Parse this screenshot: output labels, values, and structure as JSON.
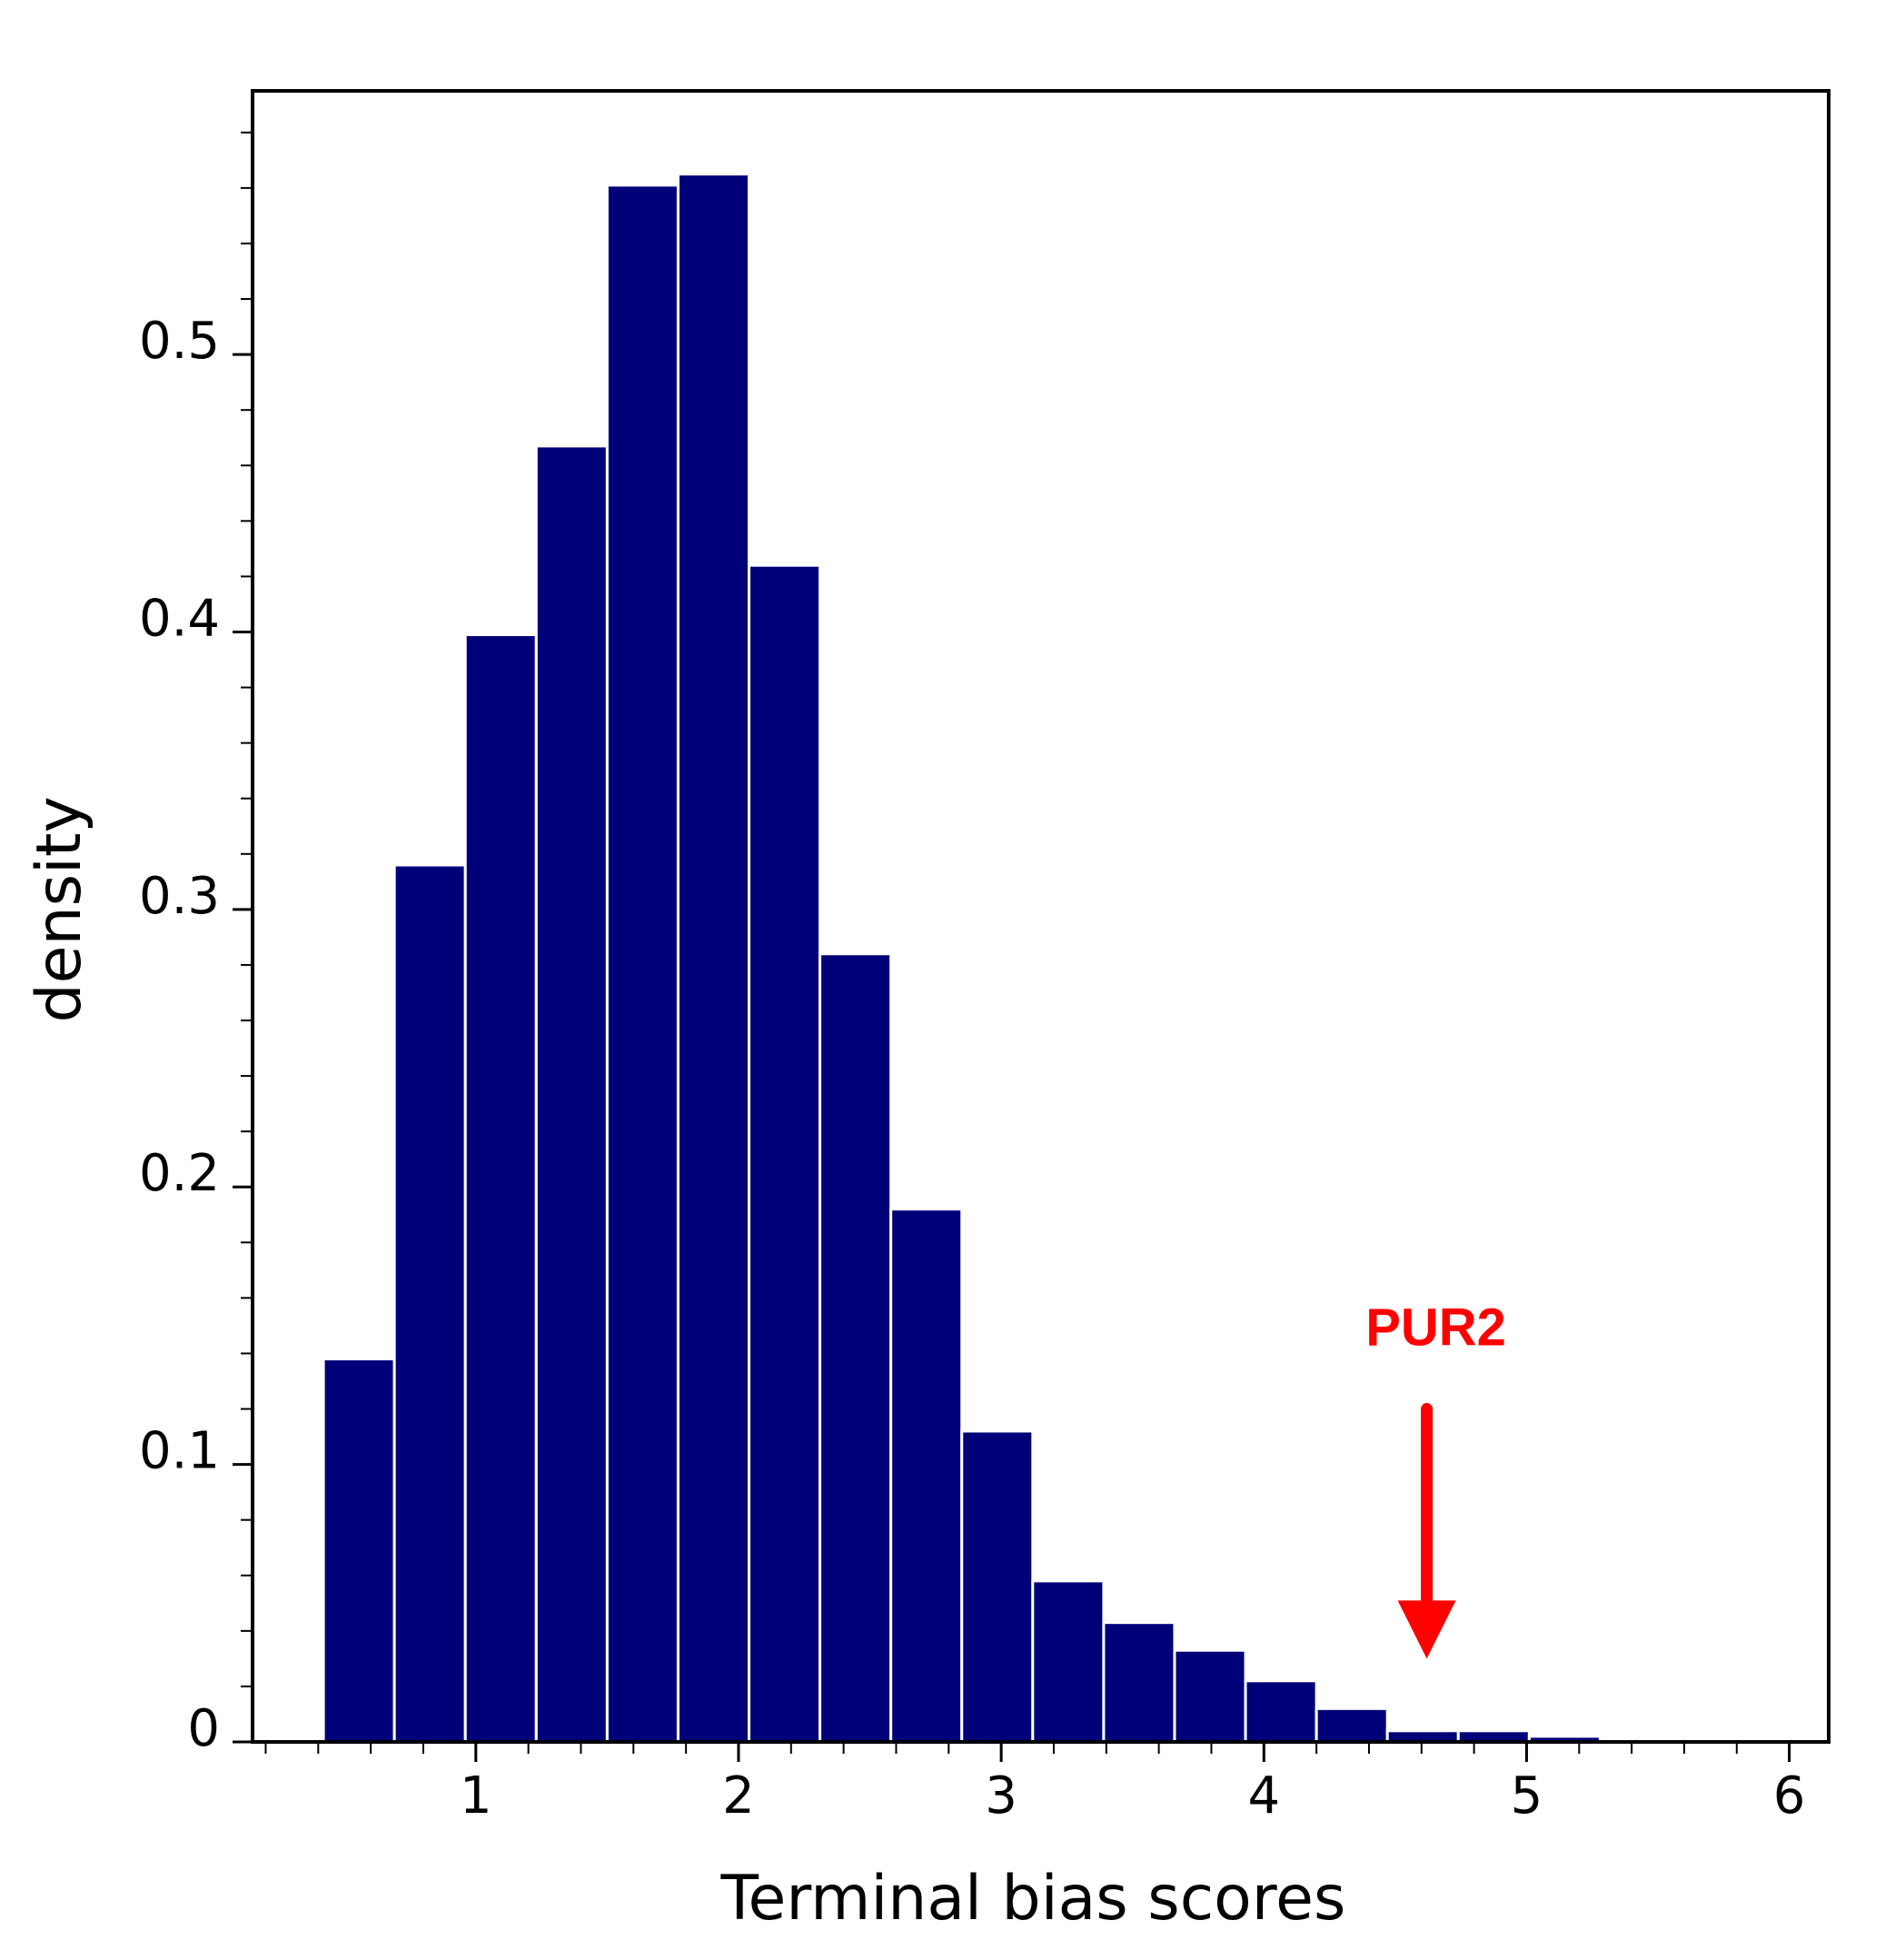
{
  "chart_data": {
    "type": "bar",
    "title": "",
    "xlabel": "Terminal bias scores",
    "ylabel": "density",
    "xlim": [
      0.15,
      6.15
    ],
    "ylim": [
      0,
      0.595
    ],
    "grid": false,
    "legend": "none",
    "colors": {
      "bar": "#000078",
      "bar_edge": "#ffffff",
      "annotation": "#ff0000",
      "axis": "#000000"
    },
    "x_ticks": [
      {
        "value": 1,
        "label": "1"
      },
      {
        "value": 2,
        "label": "2"
      },
      {
        "value": 3,
        "label": "3"
      },
      {
        "value": 4,
        "label": "4"
      },
      {
        "value": 5,
        "label": "5"
      },
      {
        "value": 6,
        "label": "6"
      }
    ],
    "y_ticks": [
      {
        "value": 0,
        "label": "0"
      },
      {
        "value": 0.1,
        "label": "0.1"
      },
      {
        "value": 0.2,
        "label": "0.2"
      },
      {
        "value": 0.3,
        "label": "0.3"
      },
      {
        "value": 0.4,
        "label": "0.4"
      },
      {
        "value": 0.5,
        "label": "0.5"
      }
    ],
    "x_minor_step": 0.2,
    "y_minor_step": 0.02,
    "bins": [
      {
        "x0": 0.42,
        "x1": 0.69,
        "density": 0.138
      },
      {
        "x0": 0.69,
        "x1": 0.96,
        "density": 0.316
      },
      {
        "x0": 0.96,
        "x1": 1.23,
        "density": 0.399
      },
      {
        "x0": 1.23,
        "x1": 1.5,
        "density": 0.467
      },
      {
        "x0": 1.5,
        "x1": 1.77,
        "density": 0.561
      },
      {
        "x0": 1.77,
        "x1": 2.04,
        "density": 0.565
      },
      {
        "x0": 2.04,
        "x1": 2.31,
        "density": 0.424
      },
      {
        "x0": 2.31,
        "x1": 2.58,
        "density": 0.284
      },
      {
        "x0": 2.58,
        "x1": 2.85,
        "density": 0.192
      },
      {
        "x0": 2.85,
        "x1": 3.12,
        "density": 0.112
      },
      {
        "x0": 3.12,
        "x1": 3.39,
        "density": 0.058
      },
      {
        "x0": 3.39,
        "x1": 3.66,
        "density": 0.043
      },
      {
        "x0": 3.66,
        "x1": 3.93,
        "density": 0.033
      },
      {
        "x0": 3.93,
        "x1": 4.2,
        "density": 0.022
      },
      {
        "x0": 4.2,
        "x1": 4.47,
        "density": 0.012
      },
      {
        "x0": 4.47,
        "x1": 4.74,
        "density": 0.004
      },
      {
        "x0": 4.74,
        "x1": 5.01,
        "density": 0.004
      },
      {
        "x0": 5.01,
        "x1": 5.28,
        "density": 0.002
      },
      {
        "x0": 5.28,
        "x1": 5.55,
        "density": 0.001
      },
      {
        "x0": 5.55,
        "x1": 5.82,
        "density": 0.001
      }
    ],
    "annotations": [
      {
        "label": "PUR2",
        "x": 4.62,
        "arrow_from_y": 0.12,
        "arrow_to_y": 0.03
      }
    ]
  }
}
